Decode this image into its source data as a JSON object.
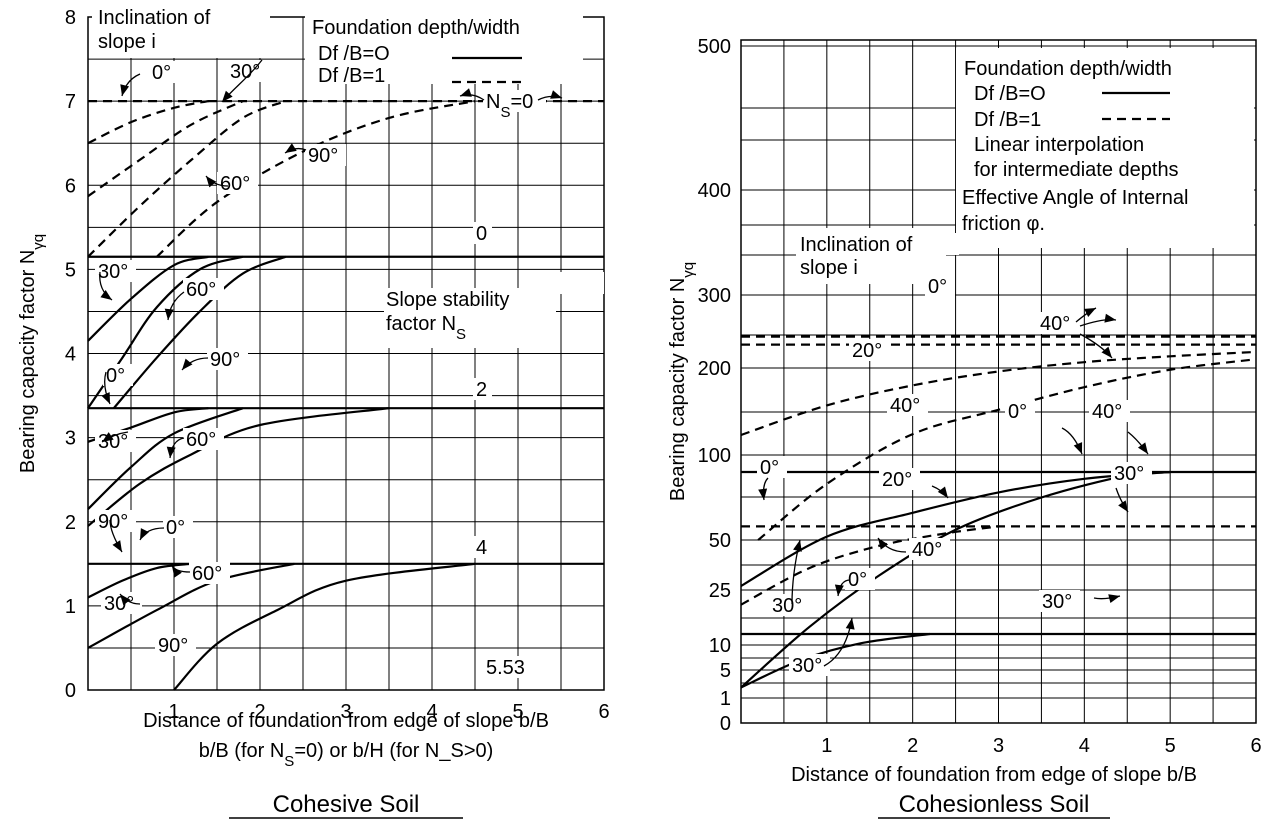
{
  "chart_data": [
    {
      "type": "line",
      "title": "Cohesive Soil",
      "xlabel": "Distance of foundation from edge of slope b/B",
      "xlabel2": "b/B (for N_S=0) or b/H (for N_S>0)",
      "ylabel": "Bearing capacity factor N_γq",
      "xlim": [
        0,
        6
      ],
      "ylim": [
        0,
        8
      ],
      "xticks": [
        "1",
        "2",
        "3",
        "4",
        "5",
        "6"
      ],
      "yticks": [
        "0",
        "1",
        "2",
        "3",
        "4",
        "5",
        "6",
        "7",
        "8"
      ],
      "legend": {
        "title": "Foundation depth/width",
        "entries": [
          "Df /B=O",
          "Df /B=1"
        ]
      },
      "series": [
        {
          "style": "dashed",
          "x": [
            0,
            6
          ],
          "y": [
            7,
            7
          ]
        },
        {
          "style": "dashed",
          "x": [
            0,
            0.5,
            1.0,
            1.4
          ],
          "y": [
            6.5,
            6.75,
            6.92,
            7.0
          ]
        },
        {
          "style": "dashed",
          "x": [
            0,
            0.6,
            1.2,
            1.8
          ],
          "y": [
            5.87,
            6.3,
            6.72,
            7.0
          ]
        },
        {
          "style": "dashed",
          "x": [
            0,
            0.6,
            1.2,
            1.8,
            2.3
          ],
          "y": [
            5.15,
            5.75,
            6.3,
            6.8,
            7.0
          ]
        },
        {
          "style": "dashed",
          "x": [
            0.8,
            1.5,
            2.5,
            3.5,
            4.5
          ],
          "y": [
            5.15,
            5.8,
            6.4,
            6.8,
            7.0
          ]
        },
        {
          "style": "solid",
          "x": [
            0,
            6
          ],
          "y": [
            5.15,
            5.15
          ]
        },
        {
          "style": "solid",
          "x": [
            0,
            0.5,
            1.0,
            1.4
          ],
          "y": [
            4.15,
            4.65,
            5.05,
            5.15
          ]
        },
        {
          "style": "solid",
          "x": [
            0,
            0.4,
            0.8,
            1.3,
            1.8
          ],
          "y": [
            3.35,
            3.95,
            4.55,
            5.0,
            5.15
          ]
        },
        {
          "style": "solid",
          "x": [
            0.3,
            0.8,
            1.3,
            1.8,
            2.3
          ],
          "y": [
            3.35,
            3.95,
            4.5,
            4.95,
            5.15
          ]
        },
        {
          "style": "solid",
          "x": [
            0,
            6
          ],
          "y": [
            3.35,
            3.35
          ]
        },
        {
          "style": "solid",
          "x": [
            0,
            0.5,
            1.0,
            1.4
          ],
          "y": [
            2.95,
            3.12,
            3.3,
            3.35
          ]
        },
        {
          "style": "solid",
          "x": [
            0,
            0.5,
            1.0,
            1.8
          ],
          "y": [
            2.15,
            2.65,
            3.05,
            3.35
          ]
        },
        {
          "style": "solid",
          "x": [
            0,
            0.6,
            1.2,
            2.0,
            3.5
          ],
          "y": [
            1.95,
            2.45,
            2.8,
            3.15,
            3.35
          ]
        },
        {
          "style": "solid",
          "x": [
            0,
            6
          ],
          "y": [
            1.5,
            1.5
          ]
        },
        {
          "style": "solid",
          "x": [
            0,
            0.4,
            0.8,
            1.2
          ],
          "y": [
            1.1,
            1.3,
            1.45,
            1.5
          ]
        },
        {
          "style": "solid",
          "x": [
            0,
            0.8,
            1.5,
            2.4
          ],
          "y": [
            0.5,
            0.95,
            1.3,
            1.5
          ]
        },
        {
          "style": "solid",
          "x": [
            1.0,
            1.5,
            2.2,
            3.0,
            4.5
          ],
          "y": [
            0,
            0.55,
            0.95,
            1.3,
            1.5
          ]
        }
      ],
      "annotations": [
        {
          "text": "Inclination of"
        },
        {
          "text": "slope i"
        },
        {
          "text": "0°"
        },
        {
          "text": "30°"
        },
        {
          "text": "90°"
        },
        {
          "text": "60°"
        },
        {
          "text": "N_S=0"
        },
        {
          "text": "0"
        },
        {
          "text": "30°"
        },
        {
          "text": "60°"
        },
        {
          "text": "Slope stability"
        },
        {
          "text": "factor N_S"
        },
        {
          "text": "0°"
        },
        {
          "text": "90°"
        },
        {
          "text": "2"
        },
        {
          "text": "30°"
        },
        {
          "text": "60°"
        },
        {
          "text": "90°"
        },
        {
          "text": "0°"
        },
        {
          "text": "4"
        },
        {
          "text": "60°"
        },
        {
          "text": "30°"
        },
        {
          "text": "90°"
        },
        {
          "text": "5.53"
        }
      ]
    },
    {
      "type": "line",
      "title": "Cohesionless Soil",
      "xlabel": "Distance of foundation from edge of slope b/B",
      "ylabel": "Bearing capacity factor N_γq",
      "xlim": [
        0,
        6
      ],
      "yticks": [
        "0",
        "1",
        "5",
        "10",
        "25",
        "50",
        "100",
        "200",
        "300",
        "400",
        "500"
      ],
      "xticks": [
        "1",
        "2",
        "3",
        "4",
        "5",
        "6"
      ],
      "legend": {
        "title": "Foundation depth/width",
        "entries": [
          "Df /B=O",
          "Df /B=1"
        ],
        "notes": [
          "Linear interpolation",
          "for intermediate depths",
          "Effective Angle of Internal",
          "friction φ."
        ]
      },
      "series": [
        {
          "style": "dashed",
          "x": [
            0,
            6
          ],
          "y": [
            243,
            243
          ]
        },
        {
          "style": "dashed",
          "x": [
            0,
            6
          ],
          "y": [
            232,
            232
          ]
        },
        {
          "style": "dashed",
          "x": [
            0,
            1.0,
            2.0,
            3.0,
            4.0,
            5.0,
            6.0
          ],
          "y": [
            123,
            157,
            180,
            196,
            208,
            216,
            222
          ]
        },
        {
          "style": "dashed",
          "x": [
            0.2,
            1.0,
            2.0,
            3.0,
            4.0,
            5.0,
            6.0
          ],
          "y": [
            50,
            83,
            124,
            152,
            178,
            198,
            212
          ]
        },
        {
          "style": "dashed",
          "x": [
            0,
            6
          ],
          "y": [
            58,
            58
          ]
        },
        {
          "style": "dashed",
          "x": [
            0,
            0.8,
            1.6,
            2.4,
            3.0
          ],
          "y": [
            21,
            36,
            47,
            54,
            58
          ]
        },
        {
          "style": "solid",
          "x": [
            0,
            6
          ],
          "y": [
            90,
            90
          ]
        },
        {
          "style": "solid",
          "x": [
            0,
            1.0,
            2.0,
            3.0,
            4.0,
            5.0
          ],
          "y": [
            27,
            52,
            66,
            78,
            86,
            90
          ]
        },
        {
          "style": "solid",
          "x": [
            0,
            0.8,
            1.6,
            2.5,
            3.5,
            4.5,
            5.0
          ],
          "y": [
            2.5,
            15,
            32,
            56,
            75,
            88,
            90
          ]
        },
        {
          "style": "solid",
          "x": [
            0,
            6
          ],
          "y": [
            13,
            13
          ]
        },
        {
          "style": "solid",
          "x": [
            0,
            0.7,
            1.4,
            2.2
          ],
          "y": [
            2.5,
            7,
            10.5,
            13
          ]
        }
      ],
      "annotations": [
        {
          "text": "Inclination of"
        },
        {
          "text": "slope i"
        },
        {
          "text": "0°"
        },
        {
          "text": "40°"
        },
        {
          "text": "20°"
        },
        {
          "text": "40°"
        },
        {
          "text": "0°"
        },
        {
          "text": "40°"
        },
        {
          "text": "0°"
        },
        {
          "text": "20°"
        },
        {
          "text": "30°"
        },
        {
          "text": "40°"
        },
        {
          "text": "30°"
        },
        {
          "text": "0°"
        },
        {
          "text": "30°"
        },
        {
          "text": "30°"
        }
      ]
    }
  ]
}
